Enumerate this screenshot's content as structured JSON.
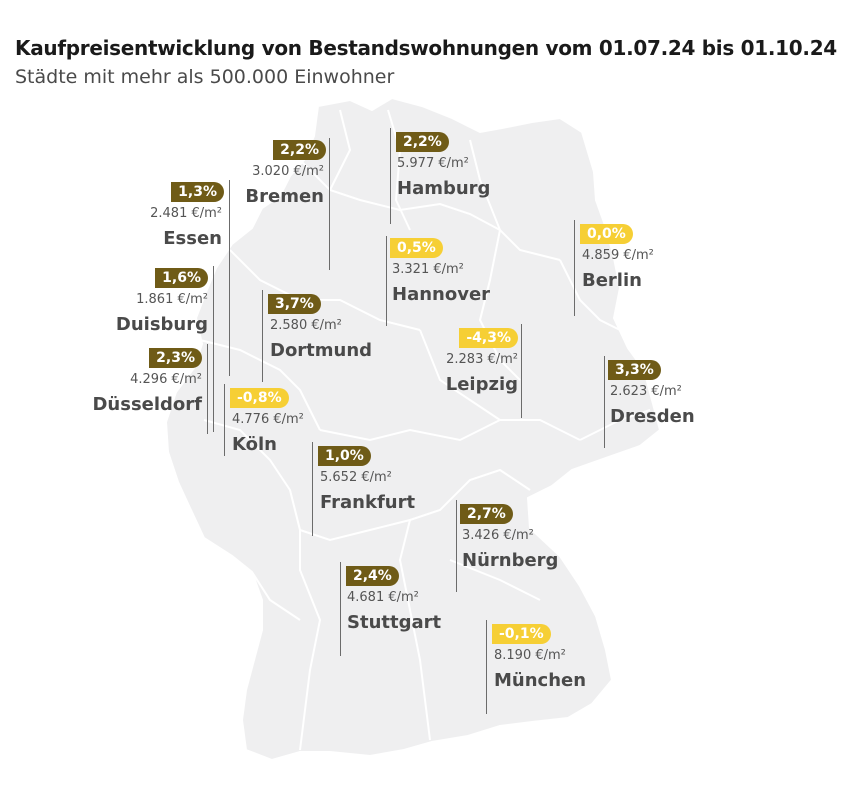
{
  "header": {
    "title": "Kaufpreisentwicklung von Bestandswohnungen vom 01.07.24 bis 01.10.24",
    "subtitle": "Städte mit mehr als 500.000 Einwohner"
  },
  "colors": {
    "increase": "#6f5b17",
    "decrease_or_zero": "#f6cf35",
    "map_fill": "#efeff0",
    "state_border": "#ffffff"
  },
  "cities": [
    {
      "name": "Bremen",
      "change": "2,2%",
      "price": "3.020 €/m²",
      "direction": "up"
    },
    {
      "name": "Hamburg",
      "change": "2,2%",
      "price": "5.977 €/m²",
      "direction": "up"
    },
    {
      "name": "Essen",
      "change": "1,3%",
      "price": "2.481 €/m²",
      "direction": "up"
    },
    {
      "name": "Berlin",
      "change": "0,0%",
      "price": "4.859 €/m²",
      "direction": "neutral"
    },
    {
      "name": "Hannover",
      "change": "0,5%",
      "price": "3.321 €/m²",
      "direction": "up"
    },
    {
      "name": "Duisburg",
      "change": "1,6%",
      "price": "1.861 €/m²",
      "direction": "up"
    },
    {
      "name": "Dortmund",
      "change": "3,7%",
      "price": "2.580 €/m²",
      "direction": "up"
    },
    {
      "name": "Leipzig",
      "change": "-4,3%",
      "price": "2.283 €/m²",
      "direction": "down"
    },
    {
      "name": "Düsseldorf",
      "change": "2,3%",
      "price": "4.296 €/m²",
      "direction": "up"
    },
    {
      "name": "Dresden",
      "change": "3,3%",
      "price": "2.623 €/m²",
      "direction": "up"
    },
    {
      "name": "Köln",
      "change": "-0,8%",
      "price": "4.776 €/m²",
      "direction": "down"
    },
    {
      "name": "Frankfurt",
      "change": "1,0%",
      "price": "5.652 €/m²",
      "direction": "up"
    },
    {
      "name": "Nürnberg",
      "change": "2,7%",
      "price": "3.426 €/m²",
      "direction": "up"
    },
    {
      "name": "Stuttgart",
      "change": "2,4%",
      "price": "4.681 €/m²",
      "direction": "up"
    },
    {
      "name": "München",
      "change": "-0,1%",
      "price": "8.190 €/m²",
      "direction": "down"
    }
  ]
}
